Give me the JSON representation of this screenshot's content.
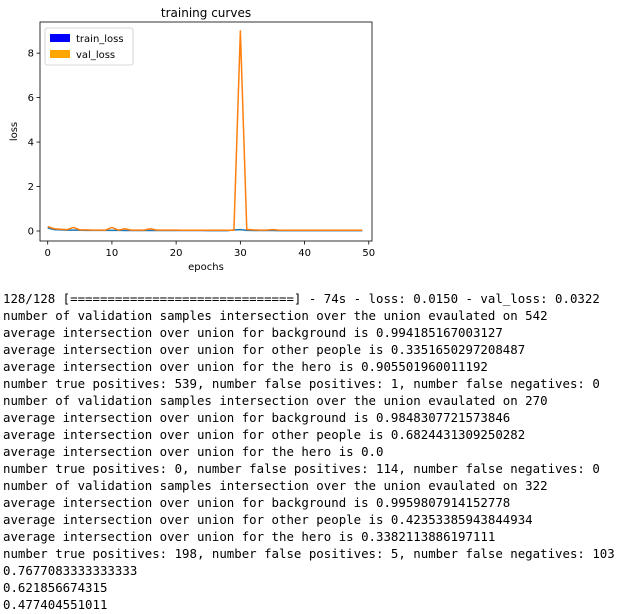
{
  "chart_data": {
    "type": "line",
    "title": "training curves",
    "xlabel": "epochs",
    "ylabel": "loss",
    "xlim": [
      -1.2,
      50.5
    ],
    "ylim": [
      -0.45,
      9.4
    ],
    "xticks": [
      0,
      10,
      20,
      30,
      40,
      50
    ],
    "yticks": [
      0,
      2,
      4,
      6,
      8
    ],
    "legend": "top-left",
    "grid": false,
    "x": [
      0,
      1,
      2,
      3,
      4,
      5,
      6,
      7,
      8,
      9,
      10,
      11,
      12,
      13,
      14,
      15,
      16,
      17,
      18,
      19,
      20,
      21,
      22,
      23,
      24,
      25,
      26,
      27,
      28,
      29,
      30,
      31,
      32,
      33,
      34,
      35,
      36,
      37,
      38,
      39,
      40,
      41,
      42,
      43,
      44,
      45,
      46,
      47,
      48,
      49
    ],
    "series": [
      {
        "name": "train_loss",
        "color": "#1f77b4",
        "values": [
          0.14,
          0.06,
          0.05,
          0.04,
          0.04,
          0.035,
          0.03,
          0.03,
          0.03,
          0.028,
          0.027,
          0.026,
          0.025,
          0.025,
          0.024,
          0.023,
          0.023,
          0.022,
          0.022,
          0.021,
          0.021,
          0.02,
          0.02,
          0.02,
          0.02,
          0.019,
          0.019,
          0.019,
          0.019,
          0.05,
          0.06,
          0.03,
          0.025,
          0.022,
          0.02,
          0.02,
          0.019,
          0.018,
          0.018,
          0.017,
          0.017,
          0.017,
          0.016,
          0.016,
          0.016,
          0.016,
          0.015,
          0.015,
          0.015,
          0.015
        ]
      },
      {
        "name": "val_loss",
        "color": "#ff7f0e",
        "values": [
          0.2,
          0.1,
          0.08,
          0.06,
          0.16,
          0.05,
          0.05,
          0.04,
          0.04,
          0.04,
          0.16,
          0.04,
          0.1,
          0.04,
          0.04,
          0.04,
          0.1,
          0.04,
          0.04,
          0.04,
          0.04,
          0.035,
          0.035,
          0.035,
          0.035,
          0.035,
          0.035,
          0.035,
          0.035,
          0.035,
          9.0,
          0.07,
          0.05,
          0.04,
          0.04,
          0.06,
          0.04,
          0.035,
          0.035,
          0.035,
          0.035,
          0.035,
          0.035,
          0.035,
          0.035,
          0.035,
          0.035,
          0.035,
          0.035,
          0.032
        ]
      }
    ],
    "legend_swatches": [
      {
        "name": "train_loss",
        "color": "#0000ff"
      },
      {
        "name": "val_loss",
        "color": "#ffa500"
      }
    ]
  },
  "console_lines": [
    "128/128 [==============================] - 74s - loss: 0.0150 - val_loss: 0.0322",
    "number of validation samples intersection over the union evaulated on 542",
    "average intersection over union for background is 0.994185167003127",
    "average intersection over union for other people is 0.3351650297208487",
    "average intersection over union for the hero is 0.905501960011192",
    "number true positives: 539, number false positives: 1, number false negatives: 0",
    "number of validation samples intersection over the union evaulated on 270",
    "average intersection over union for background is 0.9848307721573846",
    "average intersection over union for other people is 0.6824431309250282",
    "average intersection over union for the hero is 0.0",
    "number true positives: 0, number false positives: 114, number false negatives: 0",
    "number of validation samples intersection over the union evaulated on 322",
    "average intersection over union for background is 0.9959807914152778",
    "average intersection over union for other people is 0.42353385943844934",
    "average intersection over union for the hero is 0.3382113886197111",
    "number true positives: 198, number false positives: 5, number false negatives: 103",
    "0.7677083333333333",
    "0.621856674315",
    "0.477404551011"
  ]
}
